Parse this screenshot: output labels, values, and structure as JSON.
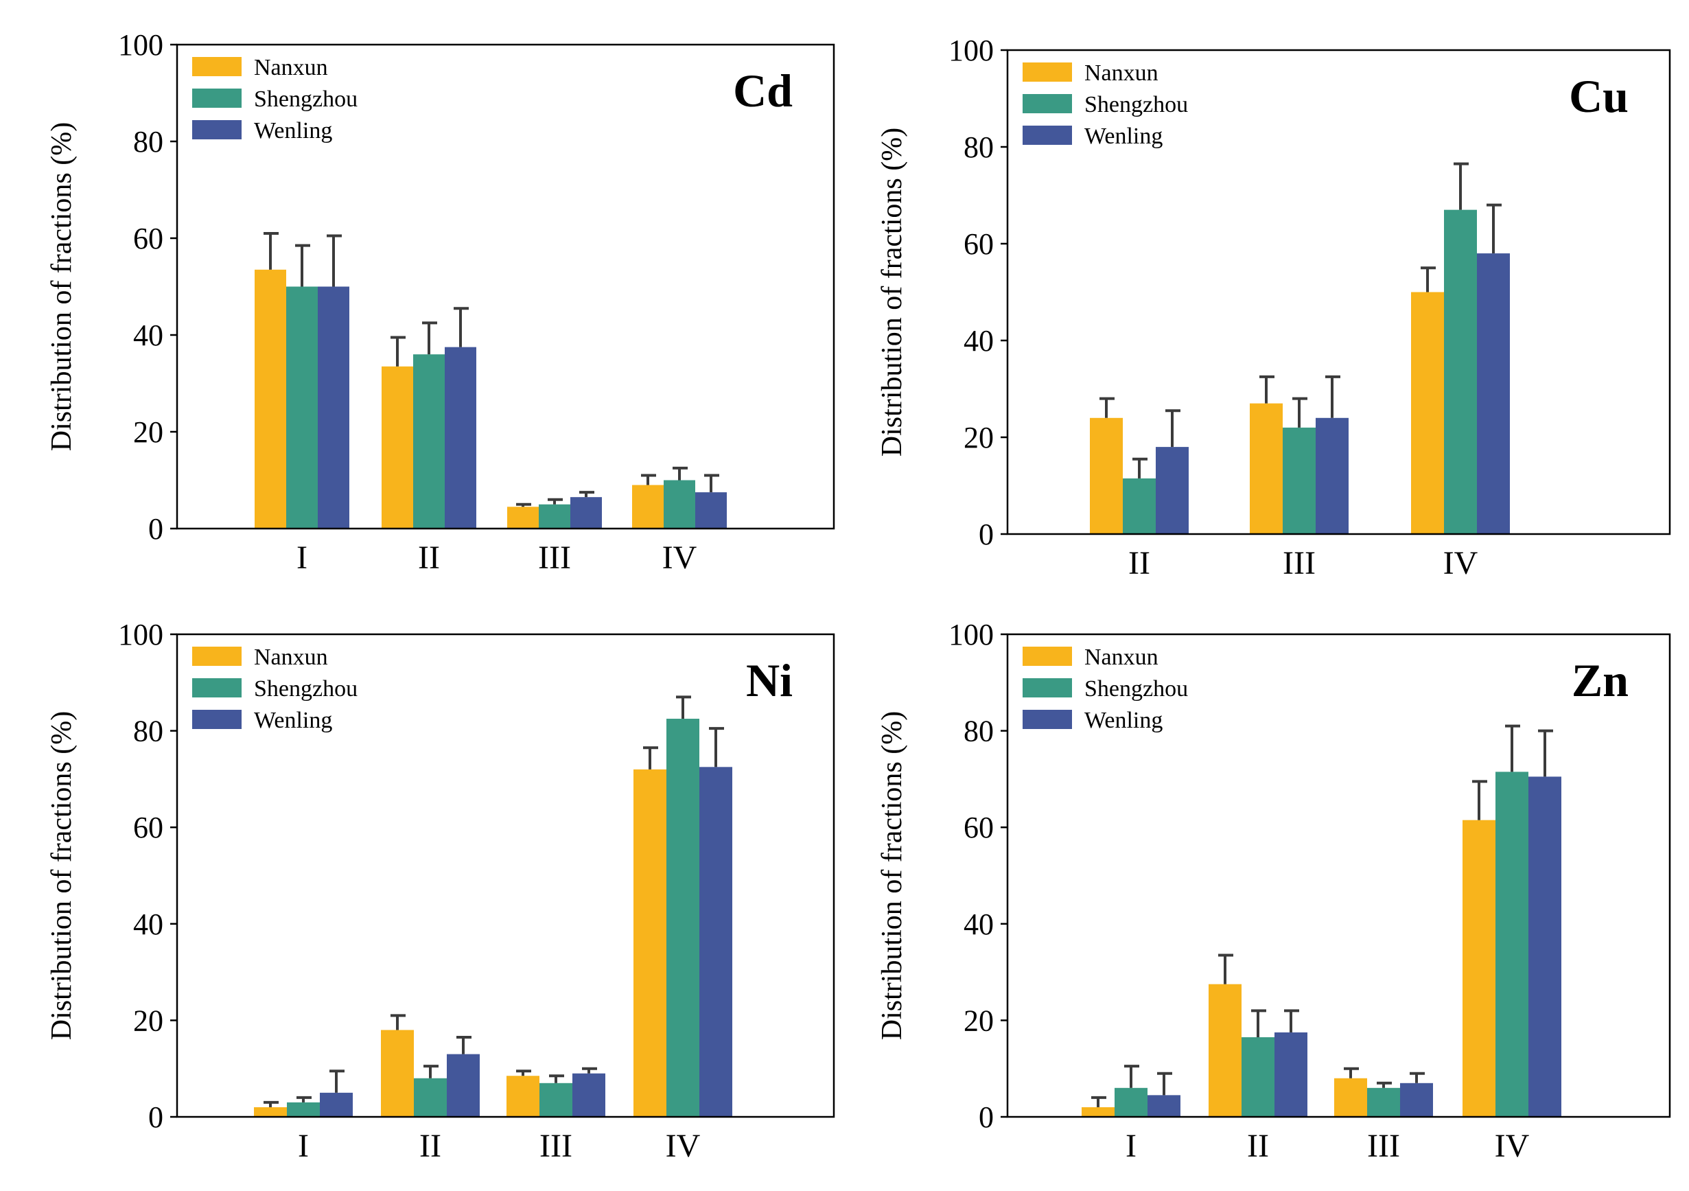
{
  "colors": {
    "Nanxun": "#f8b41c",
    "Shengzhou": "#3a9a84",
    "Wenling": "#43579a",
    "axis": "#000000",
    "errorbar": "#3b3b3b"
  },
  "chart_data": [
    {
      "type": "bar",
      "title": "Cd",
      "xlabel": "",
      "ylabel": "Distribution of fractions (%)",
      "ylim": [
        0,
        100
      ],
      "yticks": [
        "0",
        "20",
        "40",
        "60",
        "80",
        "100"
      ],
      "legend_position": "top-left",
      "categories": [
        "I",
        "II",
        "III",
        "IV"
      ],
      "series": [
        {
          "name": "Nanxun",
          "values": [
            53.5,
            33.5,
            4.5,
            9.0
          ],
          "errors": [
            7.5,
            6.0,
            0.5,
            2.0
          ]
        },
        {
          "name": "Shengzhou",
          "values": [
            50.0,
            36.0,
            5.0,
            10.0
          ],
          "errors": [
            8.5,
            6.5,
            1.0,
            2.5
          ]
        },
        {
          "name": "Wenling",
          "values": [
            50.0,
            37.5,
            6.5,
            7.5
          ],
          "errors": [
            10.5,
            8.0,
            1.0,
            3.5
          ]
        }
      ]
    },
    {
      "type": "bar",
      "title": "Cu",
      "xlabel": "",
      "ylabel": "Distribution of fractions (%)",
      "ylim": [
        0,
        100
      ],
      "yticks": [
        "0",
        "20",
        "40",
        "60",
        "80",
        "100"
      ],
      "legend_position": "top-left",
      "categories": [
        "II",
        "III",
        "IV"
      ],
      "series": [
        {
          "name": "Nanxun",
          "values": [
            24.0,
            27.0,
            50.0
          ],
          "errors": [
            4.0,
            5.5,
            5.0
          ]
        },
        {
          "name": "Shengzhou",
          "values": [
            11.5,
            22.0,
            67.0
          ],
          "errors": [
            4.0,
            6.0,
            9.5
          ]
        },
        {
          "name": "Wenling",
          "values": [
            18.0,
            24.0,
            58.0
          ],
          "errors": [
            7.5,
            8.5,
            10.0
          ]
        }
      ]
    },
    {
      "type": "bar",
      "title": "Ni",
      "xlabel": "",
      "ylabel": "Distribution of fractions (%)",
      "ylim": [
        0,
        100
      ],
      "yticks": [
        "0",
        "20",
        "40",
        "60",
        "80",
        "100"
      ],
      "legend_position": "top-left",
      "categories": [
        "I",
        "II",
        "III",
        "IV"
      ],
      "series": [
        {
          "name": "Nanxun",
          "values": [
            2.0,
            18.0,
            8.5,
            72.0
          ],
          "errors": [
            1.0,
            3.0,
            1.0,
            4.5
          ]
        },
        {
          "name": "Shengzhou",
          "values": [
            3.0,
            8.0,
            7.0,
            82.5
          ],
          "errors": [
            1.0,
            2.5,
            1.5,
            4.5
          ]
        },
        {
          "name": "Wenling",
          "values": [
            5.0,
            13.0,
            9.0,
            72.5
          ],
          "errors": [
            4.5,
            3.5,
            1.0,
            8.0
          ]
        }
      ]
    },
    {
      "type": "bar",
      "title": "Zn",
      "xlabel": "",
      "ylabel": "Distribution of fractions (%)",
      "ylim": [
        0,
        100
      ],
      "yticks": [
        "0",
        "20",
        "40",
        "60",
        "80",
        "100"
      ],
      "legend_position": "top-left",
      "categories": [
        "I",
        "II",
        "III",
        "IV"
      ],
      "series": [
        {
          "name": "Nanxun",
          "values": [
            2.0,
            27.5,
            8.0,
            61.5
          ],
          "errors": [
            2.0,
            6.0,
            2.0,
            8.0
          ]
        },
        {
          "name": "Shengzhou",
          "values": [
            6.0,
            16.5,
            6.0,
            71.5
          ],
          "errors": [
            4.5,
            5.5,
            1.0,
            9.5
          ]
        },
        {
          "name": "Wenling",
          "values": [
            4.5,
            17.5,
            7.0,
            70.5
          ],
          "errors": [
            4.5,
            4.5,
            2.0,
            9.5
          ]
        }
      ]
    }
  ]
}
